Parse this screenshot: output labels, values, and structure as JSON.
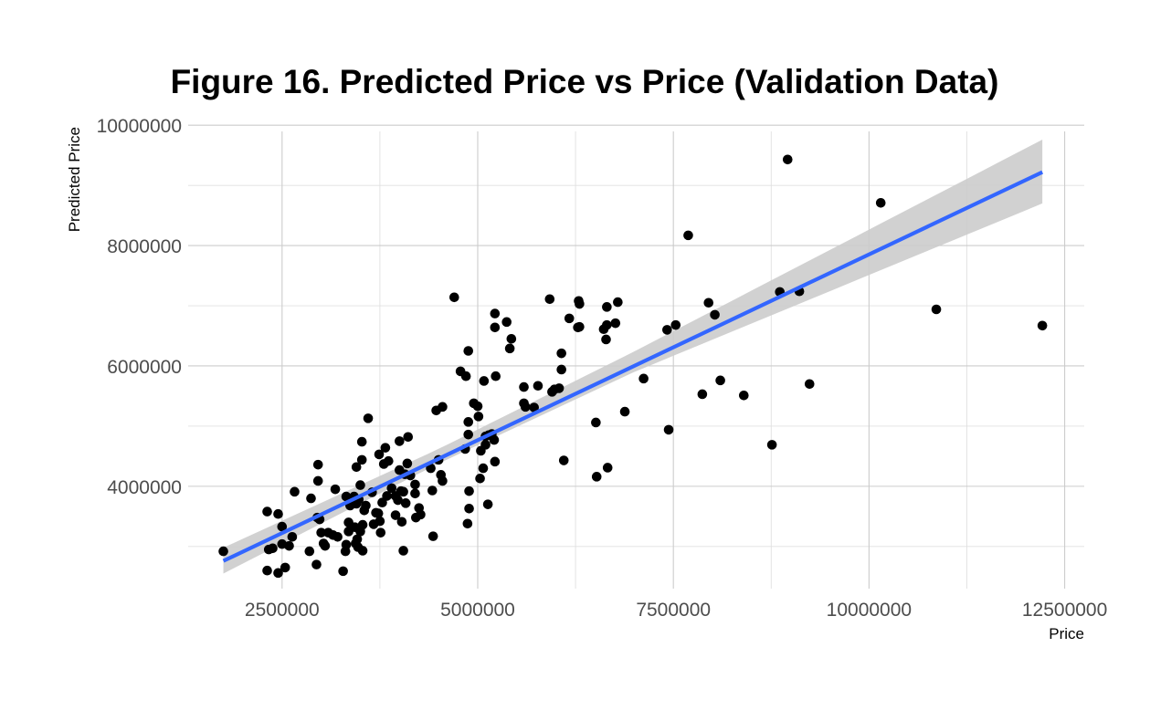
{
  "chart_data": {
    "type": "scatter",
    "title": "Figure 16. Predicted Price vs Price (Validation Data)",
    "xlabel": "Price",
    "ylabel": "Predicted Price",
    "xlim": [
      1300000,
      12750000
    ],
    "ylim": [
      2300000,
      10200000
    ],
    "x_ticks": [
      2500000,
      5000000,
      7500000,
      10000000,
      12500000
    ],
    "x_tick_labels": [
      "2500000",
      "5000000",
      "7500000",
      "10000000",
      "12500000"
    ],
    "y_ticks": [
      4000000,
      6000000,
      8000000,
      10000000
    ],
    "y_tick_labels": [
      "4000000",
      "6000000",
      "8000000",
      "10000000"
    ],
    "grid": true,
    "legend": "none",
    "colors": {
      "points": "#000000",
      "fit_line": "#3366ff",
      "ribbon": "#cccccc"
    },
    "fit": {
      "method": "linear",
      "start": [
        1750000,
        2760000
      ],
      "end": [
        12215000,
        9220000
      ],
      "ribbon": [
        {
          "x": 1750000,
          "low": 2550000,
          "high": 2980000
        },
        {
          "x": 4500000,
          "low": 4380000,
          "high": 4620000
        },
        {
          "x": 7000000,
          "low": 5900000,
          "high": 6240000
        },
        {
          "x": 12215000,
          "low": 8700000,
          "high": 9760000
        }
      ]
    },
    "points": [
      [
        1750000,
        2920000
      ],
      [
        2310000,
        2600000
      ],
      [
        2310000,
        3580000
      ],
      [
        2330000,
        2950000
      ],
      [
        2380000,
        2970000
      ],
      [
        2450000,
        2560000
      ],
      [
        2450000,
        3540000
      ],
      [
        2500000,
        3330000
      ],
      [
        2500000,
        3040000
      ],
      [
        2540000,
        2650000
      ],
      [
        2590000,
        3010000
      ],
      [
        2630000,
        3160000
      ],
      [
        2660000,
        3910000
      ],
      [
        2850000,
        2920000
      ],
      [
        2870000,
        3800000
      ],
      [
        2950000,
        3480000
      ],
      [
        2940000,
        2700000
      ],
      [
        2980000,
        3450000
      ],
      [
        2960000,
        4090000
      ],
      [
        2960000,
        4360000
      ],
      [
        3000000,
        3230000
      ],
      [
        3030000,
        3050000
      ],
      [
        3050000,
        3010000
      ],
      [
        3090000,
        3230000
      ],
      [
        3150000,
        3190000
      ],
      [
        3180000,
        3950000
      ],
      [
        3210000,
        3160000
      ],
      [
        3280000,
        2590000
      ],
      [
        3310000,
        2920000
      ],
      [
        3320000,
        3030000
      ],
      [
        3320000,
        3830000
      ],
      [
        3350000,
        3400000
      ],
      [
        3350000,
        3250000
      ],
      [
        3370000,
        3680000
      ],
      [
        3400000,
        3800000
      ],
      [
        3420000,
        3830000
      ],
      [
        3430000,
        3320000
      ],
      [
        3440000,
        3050000
      ],
      [
        3450000,
        4320000
      ],
      [
        3450000,
        3710000
      ],
      [
        3460000,
        3120000
      ],
      [
        3470000,
        2990000
      ],
      [
        3480000,
        3780000
      ],
      [
        3500000,
        4020000
      ],
      [
        3500000,
        3250000
      ],
      [
        3520000,
        4440000
      ],
      [
        3520000,
        4740000
      ],
      [
        3530000,
        3360000
      ],
      [
        3530000,
        2930000
      ],
      [
        3550000,
        3600000
      ],
      [
        3570000,
        3680000
      ],
      [
        3600000,
        5130000
      ],
      [
        3650000,
        3900000
      ],
      [
        3670000,
        3370000
      ],
      [
        3700000,
        3560000
      ],
      [
        3730000,
        3550000
      ],
      [
        3740000,
        4530000
      ],
      [
        3750000,
        3420000
      ],
      [
        3760000,
        3230000
      ],
      [
        3780000,
        3730000
      ],
      [
        3800000,
        4370000
      ],
      [
        3820000,
        4640000
      ],
      [
        3840000,
        3840000
      ],
      [
        3860000,
        4420000
      ],
      [
        3900000,
        3970000
      ],
      [
        3950000,
        3840000
      ],
      [
        3950000,
        3520000
      ],
      [
        3980000,
        3770000
      ],
      [
        4000000,
        4270000
      ],
      [
        4000000,
        4750000
      ],
      [
        4020000,
        3920000
      ],
      [
        4030000,
        3410000
      ],
      [
        4050000,
        2930000
      ],
      [
        4050000,
        3910000
      ],
      [
        4070000,
        4200000
      ],
      [
        4080000,
        3720000
      ],
      [
        4100000,
        4380000
      ],
      [
        4110000,
        4820000
      ],
      [
        4140000,
        4180000
      ],
      [
        4200000,
        4030000
      ],
      [
        4200000,
        3880000
      ],
      [
        4210000,
        3480000
      ],
      [
        4250000,
        3640000
      ],
      [
        4270000,
        3530000
      ],
      [
        4400000,
        4300000
      ],
      [
        4420000,
        3930000
      ],
      [
        4430000,
        3170000
      ],
      [
        4470000,
        5260000
      ],
      [
        4500000,
        4440000
      ],
      [
        4530000,
        4190000
      ],
      [
        4550000,
        4090000
      ],
      [
        4550000,
        5320000
      ],
      [
        4700000,
        7140000
      ],
      [
        4780000,
        5910000
      ],
      [
        4840000,
        4620000
      ],
      [
        4850000,
        5830000
      ],
      [
        4870000,
        3380000
      ],
      [
        4880000,
        6250000
      ],
      [
        4880000,
        5070000
      ],
      [
        4880000,
        4860000
      ],
      [
        4890000,
        3630000
      ],
      [
        4890000,
        3920000
      ],
      [
        4950000,
        5380000
      ],
      [
        5000000,
        5330000
      ],
      [
        5010000,
        5160000
      ],
      [
        5030000,
        4130000
      ],
      [
        5040000,
        4590000
      ],
      [
        5070000,
        4300000
      ],
      [
        5080000,
        5750000
      ],
      [
        5100000,
        4830000
      ],
      [
        5100000,
        4690000
      ],
      [
        5130000,
        3700000
      ],
      [
        5140000,
        4850000
      ],
      [
        5180000,
        4870000
      ],
      [
        5210000,
        4770000
      ],
      [
        5220000,
        4410000
      ],
      [
        5220000,
        6640000
      ],
      [
        5220000,
        6870000
      ],
      [
        5230000,
        5830000
      ],
      [
        5370000,
        6730000
      ],
      [
        5410000,
        6290000
      ],
      [
        5430000,
        6450000
      ],
      [
        5590000,
        5650000
      ],
      [
        5590000,
        5380000
      ],
      [
        5610000,
        5320000
      ],
      [
        5720000,
        5310000
      ],
      [
        5770000,
        5670000
      ],
      [
        5920000,
        7110000
      ],
      [
        5950000,
        5570000
      ],
      [
        5980000,
        5610000
      ],
      [
        6040000,
        5630000
      ],
      [
        6070000,
        5940000
      ],
      [
        6070000,
        6210000
      ],
      [
        6100000,
        4430000
      ],
      [
        6170000,
        6790000
      ],
      [
        6280000,
        6640000
      ],
      [
        6290000,
        7080000
      ],
      [
        6300000,
        6650000
      ],
      [
        6300000,
        7030000
      ],
      [
        6510000,
        5060000
      ],
      [
        6520000,
        4160000
      ],
      [
        6610000,
        6610000
      ],
      [
        6640000,
        6440000
      ],
      [
        6650000,
        6980000
      ],
      [
        6650000,
        6680000
      ],
      [
        6660000,
        4310000
      ],
      [
        6760000,
        6710000
      ],
      [
        6790000,
        7060000
      ],
      [
        6880000,
        5240000
      ],
      [
        7120000,
        5790000
      ],
      [
        7420000,
        6600000
      ],
      [
        7440000,
        4940000
      ],
      [
        7530000,
        6680000
      ],
      [
        7690000,
        8170000
      ],
      [
        7870000,
        5530000
      ],
      [
        7950000,
        7050000
      ],
      [
        8030000,
        6850000
      ],
      [
        8100000,
        5760000
      ],
      [
        8400000,
        5510000
      ],
      [
        8760000,
        4690000
      ],
      [
        8860000,
        7230000
      ],
      [
        8960000,
        9430000
      ],
      [
        9110000,
        7240000
      ],
      [
        9240000,
        5700000
      ],
      [
        10150000,
        8710000
      ],
      [
        10860000,
        6940000
      ],
      [
        12215000,
        6670000
      ]
    ]
  }
}
